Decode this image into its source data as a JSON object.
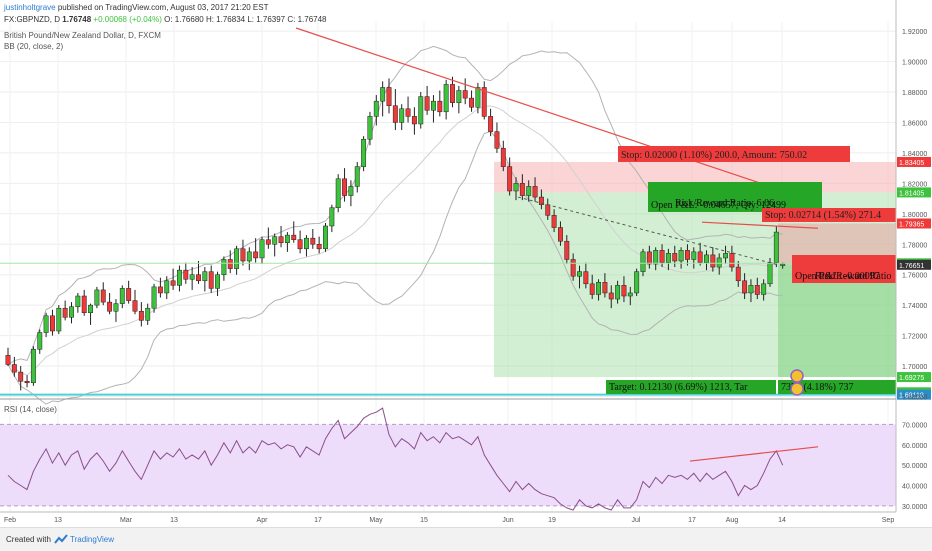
{
  "header": {
    "user": "justinholtgrave",
    "published": "published on TradingView.com, August 03, 2017 21:20 EST",
    "quote": "FX:GBPNZD, D",
    "close_str": "1.76748",
    "change": "+0.00068 (+0.04%)",
    "ohlc": "O: 1.76680 H: 1.76834 L: 1.76397 C: 1.76748",
    "instrument": "British Pound/New Zealand Dollar, D, FXCM",
    "bb_label": "BB (20, close, 2)",
    "rsi_label": "RSI (14, close)"
  },
  "footer": {
    "created": "Created with",
    "brand": "TradingView"
  },
  "colors": {
    "up": "#3ec23e",
    "down": "#f03a3a",
    "bb": "#b3b3b3",
    "rsi": "#8a4f8a",
    "rsi_band": "#eedcfb",
    "trend": "#e84b4b",
    "support": "#4fd0d8",
    "target_zone": "#9edc9e",
    "stop_zone": "#f7b3b3"
  },
  "chart_data": [
    {
      "type": "candlestick",
      "title": "British Pound/New Zealand Dollar, D, FXCM",
      "overlay": "BB (20, close, 2)",
      "y_ticks": [
        "1.92000",
        "1.90000",
        "1.88000",
        "1.86000",
        "1.84000",
        "1.82000",
        "1.80000",
        "1.78000",
        "1.76000",
        "1.74000",
        "1.72000",
        "1.70000",
        "1.68000"
      ],
      "ylim": [
        1.679,
        1.926
      ],
      "x_ticks": [
        "Feb",
        "13",
        "Mar",
        "13",
        "Apr",
        "17",
        "May",
        "15",
        "Jun",
        "19",
        "Jul",
        "17",
        "Aug",
        "14",
        "Sep"
      ],
      "price_labels": [
        {
          "text": "1.83405",
          "value": 1.83405,
          "color": "#f03a3a"
        },
        {
          "text": "1.81405",
          "value": 1.81405,
          "color": "#3ec23e"
        },
        {
          "text": "1.79365",
          "value": 1.79365,
          "color": "#f03a3a"
        },
        {
          "text": "1.76748",
          "value": 1.76748,
          "color": "#3ec23e"
        },
        {
          "text": "1.76651",
          "value": 1.76651,
          "color": "#333333"
        },
        {
          "text": "1.69275",
          "value": 1.69275,
          "color": "#3ec23e"
        },
        {
          "text": "1.68275",
          "value": 1.68275,
          "color": "#3ec23e"
        },
        {
          "text": "1.68118",
          "value": 1.68118,
          "color": "#2a8cc8"
        }
      ],
      "positions": [
        {
          "side": "long",
          "entry": 1.81405,
          "stop": 1.83405,
          "target": 1.69275,
          "stop_label": "Stop: 0.02000 (1.10%) 200.0, Amount: 750.02",
          "target_label": "Target: 0.12130 (6.69%) 1213, Tar",
          "pnl_label": "Open P&L: -0.04657, Qty: 12499",
          "rr_label": "Risk/Reward Ratio: 6.06"
        },
        {
          "side": "long",
          "entry": 1.76651,
          "stop": 1.79365,
          "target": 1.69275,
          "stop_label": "Stop: 0.02714 (1.54%) 271.4",
          "target_label": "7376 (4.18%) 737",
          "pnl_label": "Open P&L: -0.00097",
          "rr_label": "Risk/Reward Ratio"
        }
      ],
      "support_level": 1.68118,
      "trendline": {
        "from": "Mar 31",
        "to": "Aug 18"
      },
      "candles": [
        [
          1.707,
          1.712,
          1.7,
          1.701
        ],
        [
          1.701,
          1.706,
          1.693,
          1.696
        ],
        [
          1.696,
          1.7,
          1.684,
          1.69
        ],
        [
          1.69,
          1.694,
          1.686,
          1.689
        ],
        [
          1.689,
          1.713,
          1.687,
          1.711
        ],
        [
          1.711,
          1.724,
          1.708,
          1.722
        ],
        [
          1.722,
          1.735,
          1.719,
          1.733
        ],
        [
          1.733,
          1.737,
          1.72,
          1.723
        ],
        [
          1.723,
          1.74,
          1.721,
          1.738
        ],
        [
          1.738,
          1.743,
          1.73,
          1.732
        ],
        [
          1.732,
          1.742,
          1.728,
          1.739
        ],
        [
          1.739,
          1.748,
          1.735,
          1.746
        ],
        [
          1.746,
          1.75,
          1.733,
          1.735
        ],
        [
          1.735,
          1.741,
          1.727,
          1.74
        ],
        [
          1.74,
          1.752,
          1.738,
          1.75
        ],
        [
          1.75,
          1.755,
          1.74,
          1.742
        ],
        [
          1.742,
          1.748,
          1.734,
          1.736
        ],
        [
          1.736,
          1.744,
          1.729,
          1.741
        ],
        [
          1.741,
          1.753,
          1.738,
          1.751
        ],
        [
          1.751,
          1.756,
          1.741,
          1.743
        ],
        [
          1.743,
          1.75,
          1.734,
          1.736
        ],
        [
          1.736,
          1.742,
          1.726,
          1.73
        ],
        [
          1.73,
          1.741,
          1.727,
          1.738
        ],
        [
          1.738,
          1.754,
          1.735,
          1.752
        ],
        [
          1.752,
          1.758,
          1.745,
          1.748
        ],
        [
          1.748,
          1.759,
          1.744,
          1.756
        ],
        [
          1.756,
          1.764,
          1.75,
          1.753
        ],
        [
          1.753,
          1.766,
          1.749,
          1.763
        ],
        [
          1.763,
          1.768,
          1.754,
          1.757
        ],
        [
          1.757,
          1.765,
          1.75,
          1.76
        ],
        [
          1.76,
          1.769,
          1.754,
          1.756
        ],
        [
          1.756,
          1.765,
          1.749,
          1.762
        ],
        [
          1.762,
          1.766,
          1.748,
          1.751
        ],
        [
          1.751,
          1.762,
          1.746,
          1.76
        ],
        [
          1.76,
          1.772,
          1.756,
          1.77
        ],
        [
          1.77,
          1.776,
          1.761,
          1.764
        ],
        [
          1.764,
          1.779,
          1.76,
          1.777
        ],
        [
          1.777,
          1.783,
          1.766,
          1.769
        ],
        [
          1.769,
          1.778,
          1.763,
          1.775
        ],
        [
          1.775,
          1.784,
          1.768,
          1.771
        ],
        [
          1.771,
          1.785,
          1.767,
          1.783
        ],
        [
          1.783,
          1.791,
          1.777,
          1.78
        ],
        [
          1.78,
          1.787,
          1.772,
          1.785
        ],
        [
          1.785,
          1.792,
          1.778,
          1.781
        ],
        [
          1.781,
          1.788,
          1.775,
          1.786
        ],
        [
          1.786,
          1.795,
          1.781,
          1.783
        ],
        [
          1.783,
          1.789,
          1.774,
          1.777
        ],
        [
          1.777,
          1.786,
          1.772,
          1.784
        ],
        [
          1.784,
          1.79,
          1.777,
          1.78
        ],
        [
          1.78,
          1.785,
          1.774,
          1.777
        ],
        [
          1.777,
          1.794,
          1.775,
          1.792
        ],
        [
          1.792,
          1.806,
          1.788,
          1.804
        ],
        [
          1.804,
          1.826,
          1.801,
          1.823
        ],
        [
          1.823,
          1.83,
          1.808,
          1.812
        ],
        [
          1.812,
          1.822,
          1.805,
          1.818
        ],
        [
          1.818,
          1.834,
          1.814,
          1.831
        ],
        [
          1.831,
          1.851,
          1.828,
          1.849
        ],
        [
          1.849,
          1.867,
          1.845,
          1.864
        ],
        [
          1.864,
          1.878,
          1.858,
          1.874
        ],
        [
          1.874,
          1.887,
          1.864,
          1.883
        ],
        [
          1.883,
          1.889,
          1.866,
          1.871
        ],
        [
          1.871,
          1.882,
          1.855,
          1.86
        ],
        [
          1.86,
          1.872,
          1.855,
          1.869
        ],
        [
          1.869,
          1.877,
          1.86,
          1.864
        ],
        [
          1.864,
          1.87,
          1.852,
          1.859
        ],
        [
          1.859,
          1.88,
          1.856,
          1.877
        ],
        [
          1.877,
          1.884,
          1.865,
          1.868
        ],
        [
          1.868,
          1.878,
          1.86,
          1.874
        ],
        [
          1.874,
          1.881,
          1.864,
          1.867
        ],
        [
          1.867,
          1.888,
          1.862,
          1.885
        ],
        [
          1.885,
          1.89,
          1.87,
          1.873
        ],
        [
          1.873,
          1.884,
          1.866,
          1.881
        ],
        [
          1.881,
          1.889,
          1.872,
          1.876
        ],
        [
          1.876,
          1.881,
          1.867,
          1.87
        ],
        [
          1.87,
          1.886,
          1.866,
          1.883
        ],
        [
          1.883,
          1.887,
          1.862,
          1.864
        ],
        [
          1.864,
          1.869,
          1.851,
          1.854
        ],
        [
          1.854,
          1.86,
          1.84,
          1.843
        ],
        [
          1.843,
          1.848,
          1.828,
          1.831
        ],
        [
          1.831,
          1.837,
          1.812,
          1.815
        ],
        [
          1.815,
          1.824,
          1.809,
          1.82
        ],
        [
          1.82,
          1.826,
          1.809,
          1.812
        ],
        [
          1.812,
          1.822,
          1.808,
          1.818
        ],
        [
          1.818,
          1.824,
          1.808,
          1.811
        ],
        [
          1.811,
          1.816,
          1.803,
          1.806
        ],
        [
          1.806,
          1.81,
          1.796,
          1.799
        ],
        [
          1.799,
          1.803,
          1.788,
          1.791
        ],
        [
          1.791,
          1.795,
          1.779,
          1.782
        ],
        [
          1.782,
          1.786,
          1.767,
          1.77
        ],
        [
          1.77,
          1.774,
          1.756,
          1.759
        ],
        [
          1.759,
          1.766,
          1.751,
          1.762
        ],
        [
          1.762,
          1.768,
          1.751,
          1.754
        ],
        [
          1.754,
          1.76,
          1.744,
          1.747
        ],
        [
          1.747,
          1.757,
          1.743,
          1.755
        ],
        [
          1.755,
          1.761,
          1.745,
          1.748
        ],
        [
          1.748,
          1.753,
          1.738,
          1.744
        ],
        [
          1.744,
          1.756,
          1.741,
          1.753
        ],
        [
          1.753,
          1.759,
          1.742,
          1.746
        ],
        [
          1.746,
          1.752,
          1.74,
          1.748
        ],
        [
          1.748,
          1.764,
          1.746,
          1.762
        ],
        [
          1.762,
          1.777,
          1.759,
          1.775
        ],
        [
          1.775,
          1.779,
          1.764,
          1.767
        ],
        [
          1.767,
          1.778,
          1.763,
          1.776
        ],
        [
          1.776,
          1.78,
          1.765,
          1.768
        ],
        [
          1.768,
          1.777,
          1.763,
          1.774
        ],
        [
          1.774,
          1.779,
          1.765,
          1.769
        ],
        [
          1.769,
          1.778,
          1.764,
          1.776
        ],
        [
          1.776,
          1.78,
          1.766,
          1.77
        ],
        [
          1.77,
          1.778,
          1.764,
          1.775
        ],
        [
          1.775,
          1.781,
          1.766,
          1.768
        ],
        [
          1.768,
          1.776,
          1.763,
          1.773
        ],
        [
          1.773,
          1.778,
          1.762,
          1.765
        ],
        [
          1.765,
          1.774,
          1.76,
          1.771
        ],
        [
          1.771,
          1.779,
          1.767,
          1.774
        ],
        [
          1.774,
          1.779,
          1.762,
          1.765
        ],
        [
          1.765,
          1.769,
          1.752,
          1.756
        ],
        [
          1.756,
          1.761,
          1.744,
          1.748
        ],
        [
          1.748,
          1.757,
          1.742,
          1.753
        ],
        [
          1.753,
          1.758,
          1.744,
          1.747
        ],
        [
          1.747,
          1.757,
          1.743,
          1.754
        ],
        [
          1.754,
          1.771,
          1.752,
          1.768
        ],
        [
          1.768,
          1.792,
          1.765,
          1.788
        ],
        [
          1.766,
          1.768,
          1.764,
          1.767
        ]
      ]
    },
    {
      "type": "line",
      "title": "RSI (14, close)",
      "y_ticks": [
        "70.0000",
        "60.0000",
        "50.0000",
        "40.0000",
        "30.0000"
      ],
      "ylim": [
        27,
        82
      ],
      "band": [
        30,
        70
      ],
      "values": [
        45,
        42,
        40,
        38,
        47,
        53,
        58,
        51,
        56,
        50,
        55,
        57,
        48,
        53,
        56,
        52,
        47,
        51,
        57,
        52,
        47,
        43,
        50,
        57,
        53,
        56,
        54,
        58,
        53,
        55,
        53,
        57,
        50,
        55,
        61,
        56,
        62,
        56,
        59,
        56,
        62,
        60,
        61,
        58,
        60,
        59,
        54,
        59,
        57,
        55,
        63,
        68,
        72,
        63,
        66,
        69,
        73,
        75,
        76,
        78,
        65,
        59,
        63,
        61,
        58,
        66,
        62,
        64,
        61,
        66,
        63,
        64,
        62,
        60,
        64,
        55,
        50,
        45,
        41,
        37,
        42,
        38,
        41,
        38,
        36,
        35,
        34,
        31,
        29,
        28,
        33,
        30,
        29,
        31,
        29,
        28,
        33,
        29,
        29,
        33,
        42,
        39,
        44,
        41,
        45,
        44,
        45,
        43,
        46,
        42,
        46,
        43,
        45,
        47,
        42,
        35,
        40,
        38,
        40,
        46,
        53,
        57,
        50
      ],
      "trendline": [
        52,
        59
      ]
    }
  ]
}
